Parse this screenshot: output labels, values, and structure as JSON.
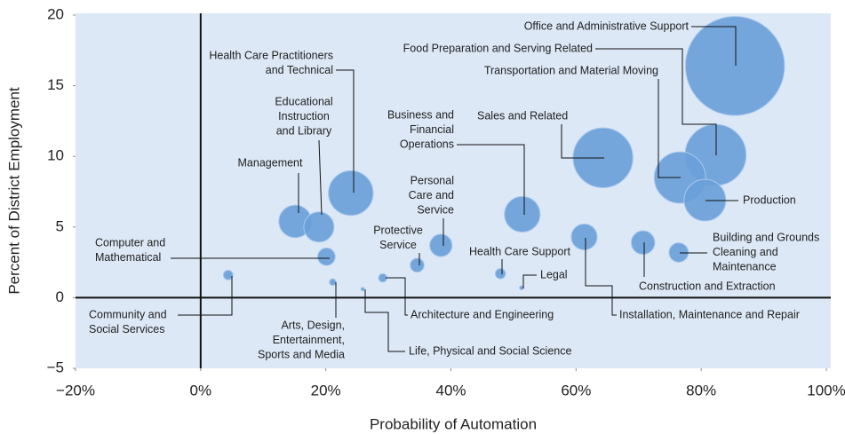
{
  "chart_data": {
    "type": "bubble",
    "x_label": "Probability of Automation",
    "y_label": "Percent of District Employment",
    "xlim": [
      -20,
      100
    ],
    "xticks": [
      {
        "value": -20,
        "label": "−20%"
      },
      {
        "value": 0,
        "label": "0%"
      },
      {
        "value": 20,
        "label": "20%"
      },
      {
        "value": 40,
        "label": "40%"
      },
      {
        "value": 60,
        "label": "60%"
      },
      {
        "value": 80,
        "label": "80%"
      },
      {
        "value": 100,
        "label": "100%"
      }
    ],
    "ylim": [
      -5,
      20
    ],
    "yticks": [
      {
        "value": -5,
        "label": "−5"
      },
      0,
      5,
      10,
      15,
      20
    ],
    "color": "#6a9fd9",
    "background": "#dce8f6",
    "points": [
      {
        "label": [
          "Office and Administrative Support"
        ],
        "x": 85.4,
        "y": 16.4
      },
      {
        "label": [
          "Food Preparation and Serving Related"
        ],
        "x": 82.3,
        "y": 10.1
      },
      {
        "label": [
          "Transportation and Material Moving"
        ],
        "x": 76.6,
        "y": 8.5
      },
      {
        "label": [
          "Production"
        ],
        "x": 80.6,
        "y": 6.9
      },
      {
        "label": [
          "Sales and Related"
        ],
        "x": 64.3,
        "y": 9.9
      },
      {
        "label": [
          "Business and",
          "Financial",
          "Operations"
        ],
        "x": 51.4,
        "y": 5.9
      },
      {
        "label": [
          "Health Care Practitioners",
          "and Technical"
        ],
        "x": 24.0,
        "y": 7.4
      },
      {
        "label": [
          "Educational",
          "Instruction",
          "and Library"
        ],
        "x": 18.9,
        "y": 5.0
      },
      {
        "label": [
          "Management"
        ],
        "x": 15.1,
        "y": 5.4
      },
      {
        "label": [
          "Computer and",
          "Mathematical"
        ],
        "x": 20.1,
        "y": 2.9
      },
      {
        "label": [
          "Community and",
          "Social Services"
        ],
        "x": 4.4,
        "y": 1.6
      },
      {
        "label": [
          "Arts, Design,",
          "Entertainment,",
          "Sports and Media"
        ],
        "x": 21.1,
        "y": 1.1
      },
      {
        "label": [
          "Life, Physical and Social Science"
        ],
        "x": 25.9,
        "y": 0.6
      },
      {
        "label": [
          "Architecture and Engineering"
        ],
        "x": 29.1,
        "y": 1.4
      },
      {
        "label": [
          "Protective",
          "Service"
        ],
        "x": 34.6,
        "y": 2.3
      },
      {
        "label": [
          "Personal",
          "Care and",
          "Service"
        ],
        "x": 38.4,
        "y": 3.7
      },
      {
        "label": [
          "Health Care Support"
        ],
        "x": 47.9,
        "y": 1.7
      },
      {
        "label": [
          "Legal"
        ],
        "x": 51.3,
        "y": 0.7
      },
      {
        "label": [
          "Installation, Maintenance and Repair"
        ],
        "x": 61.3,
        "y": 4.3
      },
      {
        "label": [
          "Construction and Extraction"
        ],
        "x": 70.7,
        "y": 3.9
      },
      {
        "label": [
          "Building and Grounds",
          "Cleaning and",
          "Maintenance"
        ],
        "x": 76.4,
        "y": 3.2
      }
    ]
  }
}
